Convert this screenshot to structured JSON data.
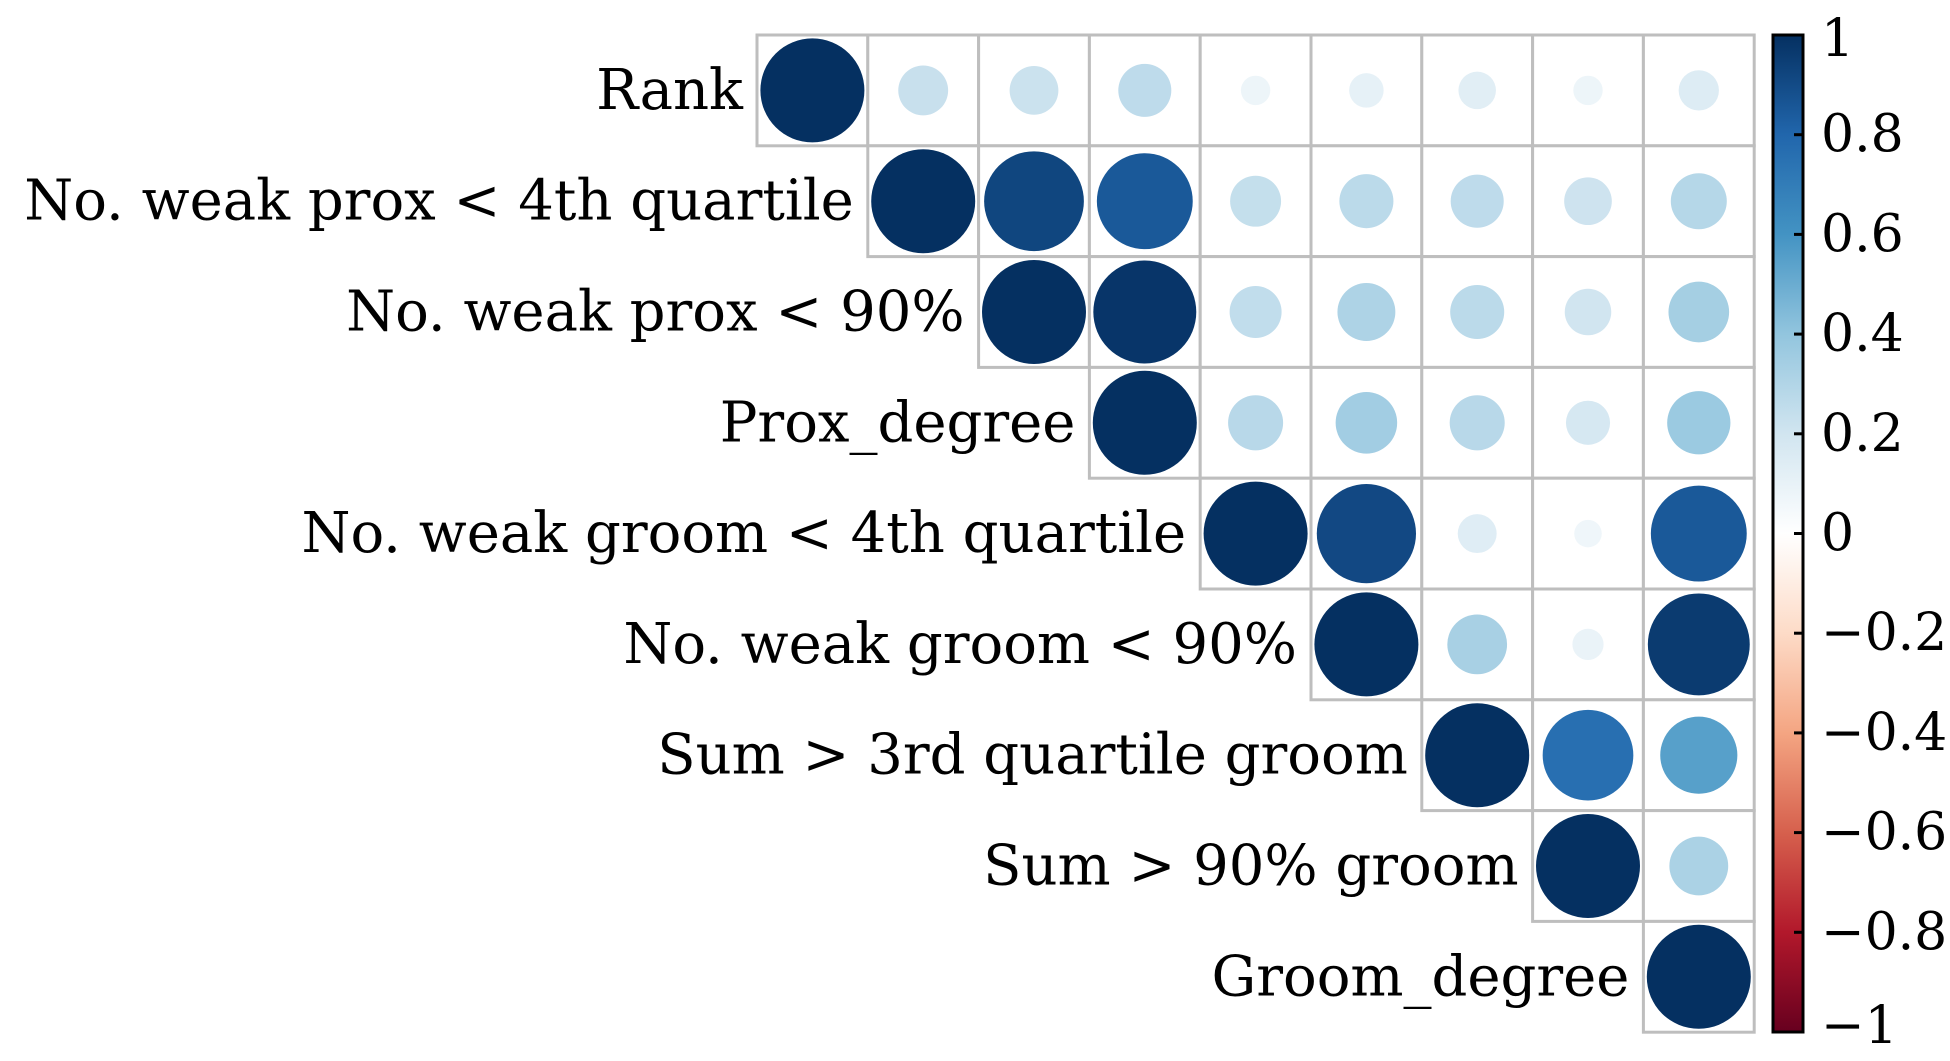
{
  "chart_data": {
    "type": "heatmap",
    "variables": [
      "Rank",
      "No. weak prox < 4th quartile",
      "No. weak prox < 90%",
      "Prox_degree",
      "No. weak groom < 4th quartile",
      "No. weak groom < 90%",
      "Sum > 3rd quartile groom",
      "Sum > 90% groom",
      "Groom_degree"
    ],
    "matrix": [
      [
        1.0,
        0.23,
        0.22,
        0.26,
        0.08,
        0.11,
        0.13,
        0.08,
        0.15
      ],
      [
        null,
        1.0,
        0.92,
        0.85,
        0.24,
        0.27,
        0.26,
        0.21,
        0.29
      ],
      [
        null,
        null,
        1.0,
        0.98,
        0.25,
        0.31,
        0.27,
        0.2,
        0.34
      ],
      [
        null,
        null,
        null,
        1.0,
        0.28,
        0.35,
        0.28,
        0.18,
        0.37
      ],
      [
        null,
        null,
        null,
        null,
        1.0,
        0.91,
        0.14,
        0.07,
        0.85
      ],
      [
        null,
        null,
        null,
        null,
        null,
        1.0,
        0.33,
        0.09,
        0.96
      ],
      [
        null,
        null,
        null,
        null,
        null,
        null,
        1.0,
        0.76,
        0.55
      ],
      [
        null,
        null,
        null,
        null,
        null,
        null,
        null,
        1.0,
        0.32
      ],
      [
        null,
        null,
        null,
        null,
        null,
        null,
        null,
        null,
        1.0
      ]
    ],
    "colorbar": {
      "range": [
        -1,
        1
      ],
      "tick_values": [
        1,
        0.8,
        0.6,
        0.4,
        0.2,
        0,
        -0.2,
        -0.4,
        -0.6,
        -0.8,
        -1
      ],
      "tick_labels": [
        "1",
        "0.8",
        "0.6",
        "0.4",
        "0.2",
        "0",
        "−0.2",
        "−0.4",
        "−0.6",
        "−0.8",
        "−1"
      ],
      "colors": {
        "neg_1": "#67001F",
        "neg_0_8": "#B2182B",
        "neg_0_6": "#D6604D",
        "neg_0_4": "#F4A582",
        "neg_0_2": "#FDDBC7",
        "zero": "#FFFFFF",
        "pos_0_2": "#D1E5F0",
        "pos_0_4": "#92C5DE",
        "pos_0_6": "#4393C3",
        "pos_0_8": "#2166AC",
        "pos_1": "#053061"
      }
    },
    "grid_color": "#BEBEBE"
  }
}
